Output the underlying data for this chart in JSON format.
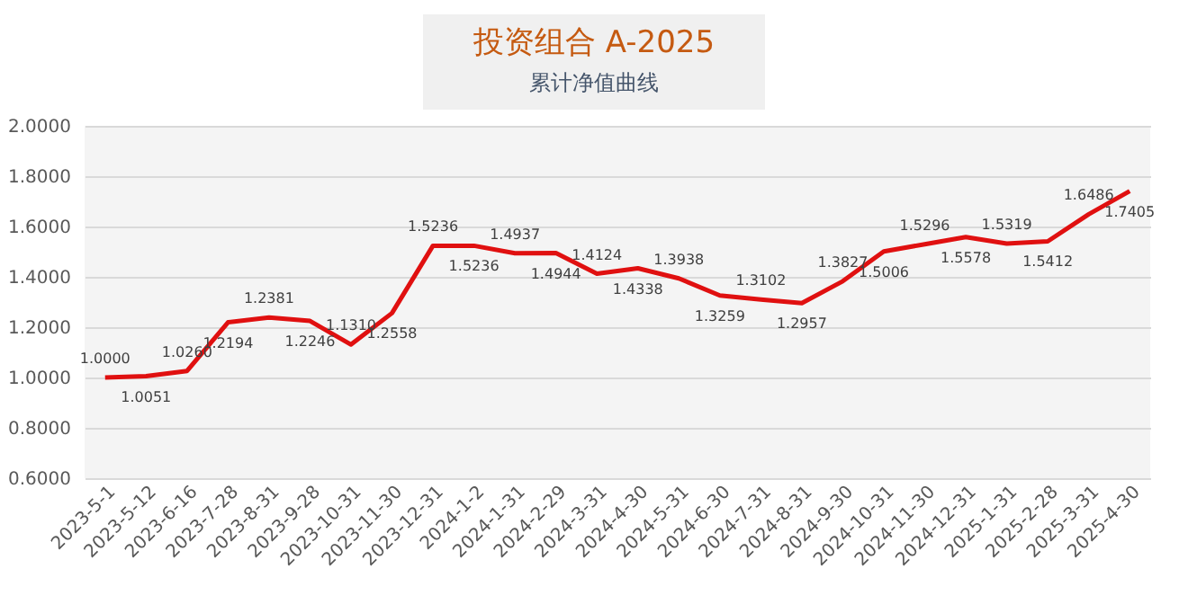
{
  "chart_data": {
    "type": "line",
    "title": "投资组合 A-2025",
    "subtitle": "累计净值曲线",
    "categories": [
      "2023-5-1",
      "2023-5-12",
      "2023-6-16",
      "2023-7-28",
      "2023-8-31",
      "2023-9-28",
      "2023-10-31",
      "2023-11-30",
      "2023-12-31",
      "2024-1-2",
      "2024-1-31",
      "2024-2-29",
      "2024-3-31",
      "2024-4-30",
      "2024-5-31",
      "2024-6-30",
      "2024-7-31",
      "2024-8-31",
      "2024-9-30",
      "2024-10-31",
      "2024-11-30",
      "2024-12-31",
      "2025-1-31",
      "2025-2-28",
      "2025-3-31",
      "2025-4-30"
    ],
    "series": [
      {
        "color": "#e01010",
        "values": [
          1.0,
          1.0051,
          1.026,
          1.2194,
          1.2381,
          1.2246,
          1.131,
          1.2558,
          1.5236,
          1.5236,
          1.4937,
          1.4944,
          1.4124,
          1.4338,
          1.3938,
          1.3259,
          1.3102,
          1.2957,
          1.3827,
          1.5006,
          1.5296,
          1.5578,
          1.5319,
          1.5412,
          1.6486,
          1.7405
        ]
      }
    ],
    "ylim": [
      0.6,
      2.0
    ],
    "yticks": [
      {
        "value": 0.6,
        "label": "0.6000"
      },
      {
        "value": 0.8,
        "label": "0.8000"
      },
      {
        "value": 1.0,
        "label": "1.0000"
      },
      {
        "value": 1.2,
        "label": "1.2000"
      },
      {
        "value": 1.4,
        "label": "1.4000"
      },
      {
        "value": 1.6,
        "label": "1.6000"
      },
      {
        "value": 1.8,
        "label": "1.8000"
      },
      {
        "value": 2.0,
        "label": "2.0000"
      }
    ],
    "value_labels": [
      "1.0000",
      "1.0051",
      "1.0260",
      "1.2194",
      "1.2381",
      "1.2246",
      "1.1310",
      "1.2558",
      "1.5236",
      "1.5236",
      "1.4937",
      "1.4944",
      "1.4124",
      "1.4338",
      "1.3938",
      "1.3259",
      "1.3102",
      "1.2957",
      "1.3827",
      "1.5006",
      "1.5296",
      "1.5578",
      "1.5319",
      "1.5412",
      "1.6486",
      "1.7405"
    ],
    "grid": "y",
    "marker": "none",
    "line_style": "solid"
  }
}
